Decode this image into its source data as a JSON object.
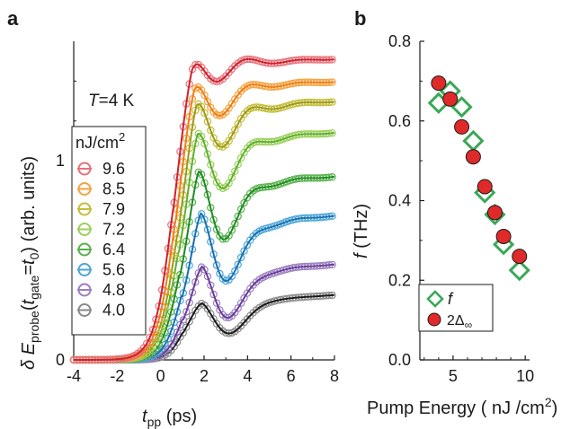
{
  "chart_data": [
    {
      "panel": "a",
      "type": "line",
      "title": "",
      "annotation": "T=4 K",
      "xlabel": "t_pp (ps)",
      "ylabel": "δ E_probe(t_gate=t_0) (arb. units)",
      "xlim": [
        -4,
        8
      ],
      "ylim": [
        0,
        1.6
      ],
      "xticks": [
        -4,
        -2,
        0,
        2,
        4,
        6,
        8
      ],
      "yticks": [
        0,
        1
      ],
      "legend_title": "nJ/cm²",
      "legend_position": "middle-left",
      "series": [
        {
          "name": "9.6",
          "color": "#e8707a",
          "line_color": "#d11f2c",
          "amp": 1.48,
          "t0": 0.55,
          "w": 0.42,
          "damp": 0.1,
          "period": 2.6,
          "decay": 1.4,
          "dip": 0.02,
          "slope": 0.004
        },
        {
          "name": "8.5",
          "color": "#f5a23c",
          "line_color": "#ee7d14",
          "amp": 1.36,
          "t0": 0.65,
          "w": 0.42,
          "damp": 0.12,
          "period": 2.55,
          "decay": 1.4,
          "dip": 0.07,
          "slope": 0.005
        },
        {
          "name": "7.9",
          "color": "#c4bd36",
          "line_color": "#9c9a1a",
          "amp": 1.24,
          "t0": 0.75,
          "w": 0.42,
          "damp": 0.16,
          "period": 2.5,
          "decay": 1.4,
          "dip": 0.1,
          "slope": 0.008
        },
        {
          "name": "7.2",
          "color": "#9ccf5a",
          "line_color": "#5db02c",
          "amp": 1.07,
          "t0": 0.8,
          "w": 0.42,
          "damp": 0.2,
          "period": 2.45,
          "decay": 1.35,
          "dip": 0.14,
          "slope": 0.01
        },
        {
          "name": "6.4",
          "color": "#56b24a",
          "line_color": "#1f8a23",
          "amp": 0.85,
          "t0": 0.85,
          "w": 0.4,
          "damp": 0.26,
          "period": 2.4,
          "decay": 1.3,
          "dip": 0.18,
          "slope": 0.01
        },
        {
          "name": "5.6",
          "color": "#4aa6d8",
          "line_color": "#1a6fb0",
          "amp": 0.64,
          "t0": 0.95,
          "w": 0.38,
          "damp": 0.3,
          "period": 2.35,
          "decay": 1.25,
          "dip": 0.2,
          "slope": 0.012
        },
        {
          "name": "4.8",
          "color": "#9b7fc0",
          "line_color": "#6a3d9a",
          "amp": 0.41,
          "t0": 1.0,
          "w": 0.36,
          "damp": 0.3,
          "period": 2.3,
          "decay": 1.2,
          "dip": 0.18,
          "slope": 0.01
        },
        {
          "name": "4.0",
          "color": "#8a8a8a",
          "line_color": "#1a1a1a",
          "amp": 0.27,
          "t0": 1.0,
          "w": 0.34,
          "damp": 0.2,
          "period": 2.3,
          "decay": 1.1,
          "dip": 0.14,
          "slope": 0.008
        }
      ]
    },
    {
      "panel": "b",
      "type": "scatter",
      "title": "",
      "xlabel": "Pump Energy ( nJ /cm²)",
      "ylabel": "f (THz)",
      "xlim": [
        2.7,
        10.3
      ],
      "ylim": [
        0.0,
        0.8
      ],
      "xticks": [
        5,
        10
      ],
      "yticks": [
        0.0,
        0.2,
        0.4,
        0.6,
        0.8
      ],
      "legend_position": "bottom-left",
      "series": [
        {
          "name": "f",
          "marker": "diamond",
          "color": "#3aa858",
          "x": [
            4.0,
            4.8,
            5.6,
            6.4,
            7.2,
            7.9,
            8.5,
            9.6
          ],
          "y": [
            0.645,
            0.675,
            0.635,
            0.55,
            0.42,
            0.365,
            0.29,
            0.225
          ]
        },
        {
          "name": "2Δ∞",
          "marker": "circle",
          "color": "#e02a2a",
          "x": [
            4.0,
            4.8,
            5.6,
            6.4,
            7.2,
            7.9,
            8.5,
            9.6
          ],
          "y": [
            0.695,
            0.655,
            0.585,
            0.51,
            0.435,
            0.37,
            0.31,
            0.26
          ]
        }
      ]
    }
  ],
  "labels": {
    "panel_a": "a",
    "panel_b": "b",
    "temp_italic": "T",
    "temp_rest": "=4 K",
    "legend_title_main": "nJ/cm",
    "legend_title_sup": "2",
    "ya_delta": "δ",
    "ya_e": "E",
    "ya_probe": "probe",
    "ya_open": "(",
    "ya_t": "t",
    "ya_gate": "gate",
    "ya_eq": "=",
    "ya_t2": "t",
    "ya_0": "0",
    "ya_close": ")",
    "ya_units": " (arb. units)",
    "xa_t": "t",
    "xa_sub": "pp",
    "xa_units": " (ps)",
    "yb_f": "f",
    "yb_units": " (THz)",
    "xb_main": "Pump Energy ( nJ /cm",
    "xb_sup": "2",
    "xb_close": ")",
    "legb_f": "f",
    "legb_delta": "2Δ",
    "legb_inf": "∞"
  }
}
